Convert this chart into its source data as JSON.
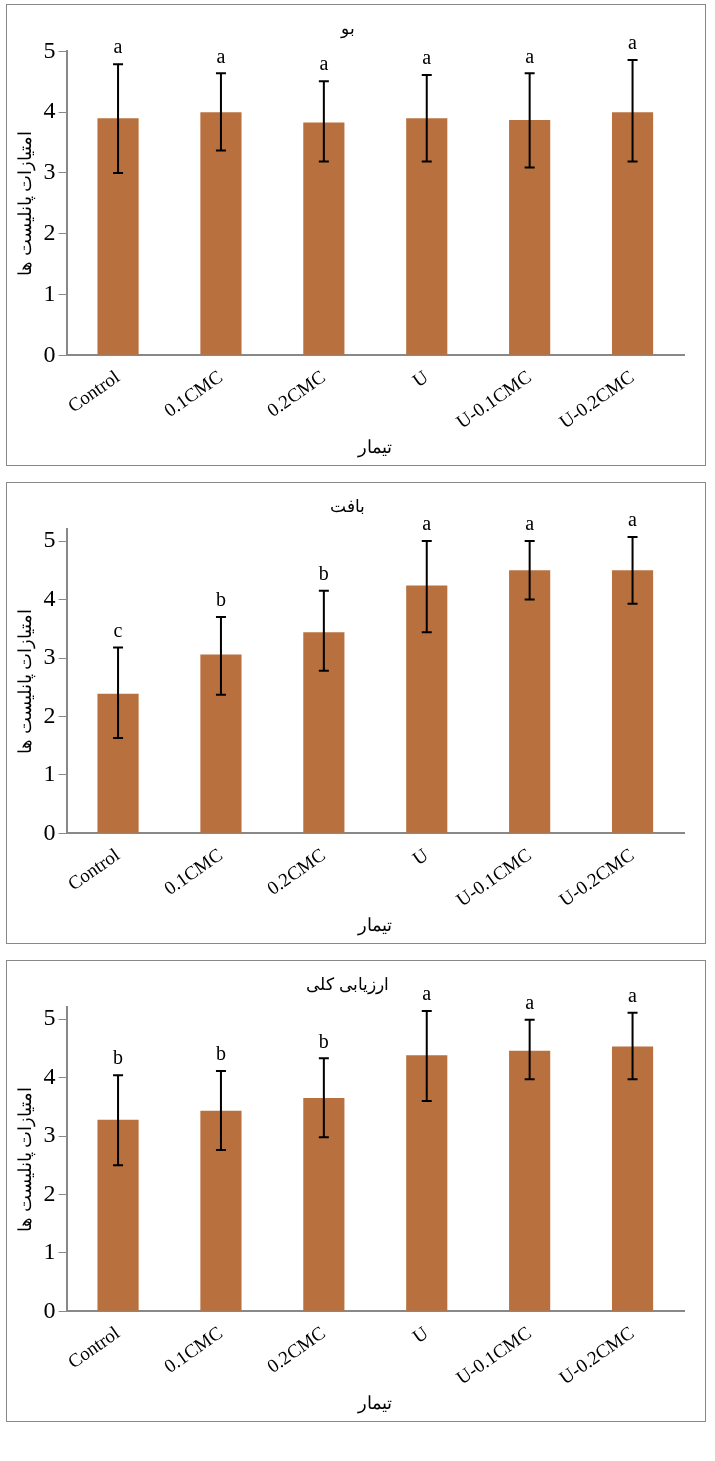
{
  "chart_data": [
    {
      "type": "bar",
      "title": "بو",
      "xlabel": "تیمار",
      "ylabel": "امتیازات پانلیست ها",
      "categories": [
        "Control",
        "0.1CMC",
        "0.2CMC",
        "U",
        "U-0.1CMC",
        "U-0.2CMC"
      ],
      "values": [
        3.9,
        4.0,
        3.83,
        3.9,
        3.87,
        4.0
      ],
      "color": "#b8703f",
      "errors": [
        [
          3.0,
          4.79
        ],
        [
          3.37,
          4.64
        ],
        [
          3.19,
          4.51
        ],
        [
          3.19,
          4.61
        ],
        [
          3.09,
          4.64
        ],
        [
          3.19,
          4.86
        ]
      ],
      "ylim": [
        0,
        5
      ],
      "yticks": [
        0,
        1,
        2,
        3,
        4,
        5
      ],
      "grid": false,
      "legend": false,
      "annotations": [
        {
          "text": "a",
          "x": "Control",
          "y": 4.79
        },
        {
          "text": "a",
          "x": "0.1CMC",
          "y": 4.64
        },
        {
          "text": "a",
          "x": "0.2CMC",
          "y": 4.51
        },
        {
          "text": "a",
          "x": "U",
          "y": 4.61
        },
        {
          "text": "a",
          "x": "U-0.1CMC",
          "y": 4.64
        },
        {
          "text": "a",
          "x": "U-0.2CMC",
          "y": 4.86
        }
      ]
    },
    {
      "type": "bar",
      "title": "بافت",
      "xlabel": "تیمار",
      "ylabel": "امتیازات پانلیست ها",
      "categories": [
        "Control",
        "0.1CMC",
        "0.2CMC",
        "U",
        "U-0.1CMC",
        "U-0.2CMC"
      ],
      "values": [
        2.39,
        3.06,
        3.44,
        4.24,
        4.5,
        4.5
      ],
      "color": "#b8703f",
      "errors": [
        [
          1.63,
          3.18
        ],
        [
          2.37,
          3.7
        ],
        [
          2.78,
          4.15
        ],
        [
          3.44,
          5.0
        ],
        [
          4.0,
          5.0
        ],
        [
          3.93,
          5.07
        ]
      ],
      "ylim": [
        0,
        5.2
      ],
      "yticks": [
        0,
        1,
        2,
        3,
        4,
        5
      ],
      "grid": false,
      "legend": false,
      "annotations": [
        {
          "text": "c",
          "x": "Control",
          "y": 3.18
        },
        {
          "text": "b",
          "x": "0.1CMC",
          "y": 3.7
        },
        {
          "text": "b",
          "x": "0.2CMC",
          "y": 4.15
        },
        {
          "text": "a",
          "x": "U",
          "y": 5.0
        },
        {
          "text": "a",
          "x": "U-0.1CMC",
          "y": 5.0
        },
        {
          "text": "a",
          "x": "U-0.2CMC",
          "y": 5.07
        }
      ]
    },
    {
      "type": "bar",
      "title": "ارزیابی کلی",
      "xlabel": "تیمار",
      "ylabel": "امتیازات پانلیست ها",
      "categories": [
        "Control",
        "0.1CMC",
        "0.2CMC",
        "U",
        "U-0.1CMC",
        "U-0.2CMC"
      ],
      "values": [
        3.28,
        3.43,
        3.65,
        4.38,
        4.46,
        4.53
      ],
      "color": "#b8703f",
      "errors": [
        [
          2.5,
          4.04
        ],
        [
          2.76,
          4.11
        ],
        [
          2.98,
          4.33
        ],
        [
          3.6,
          5.14
        ],
        [
          3.97,
          4.99
        ],
        [
          3.97,
          5.11
        ]
      ],
      "ylim": [
        0,
        5.2
      ],
      "yticks": [
        0,
        1,
        2,
        3,
        4,
        5
      ],
      "grid": false,
      "legend": false,
      "annotations": [
        {
          "text": "b",
          "x": "Control",
          "y": 4.04
        },
        {
          "text": "b",
          "x": "0.1CMC",
          "y": 4.11
        },
        {
          "text": "b",
          "x": "0.2CMC",
          "y": 4.33
        },
        {
          "text": "a",
          "x": "U",
          "y": 5.14
        },
        {
          "text": "a",
          "x": "U-0.1CMC",
          "y": 4.99
        },
        {
          "text": "a",
          "x": "U-0.2CMC",
          "y": 5.11
        }
      ]
    }
  ]
}
